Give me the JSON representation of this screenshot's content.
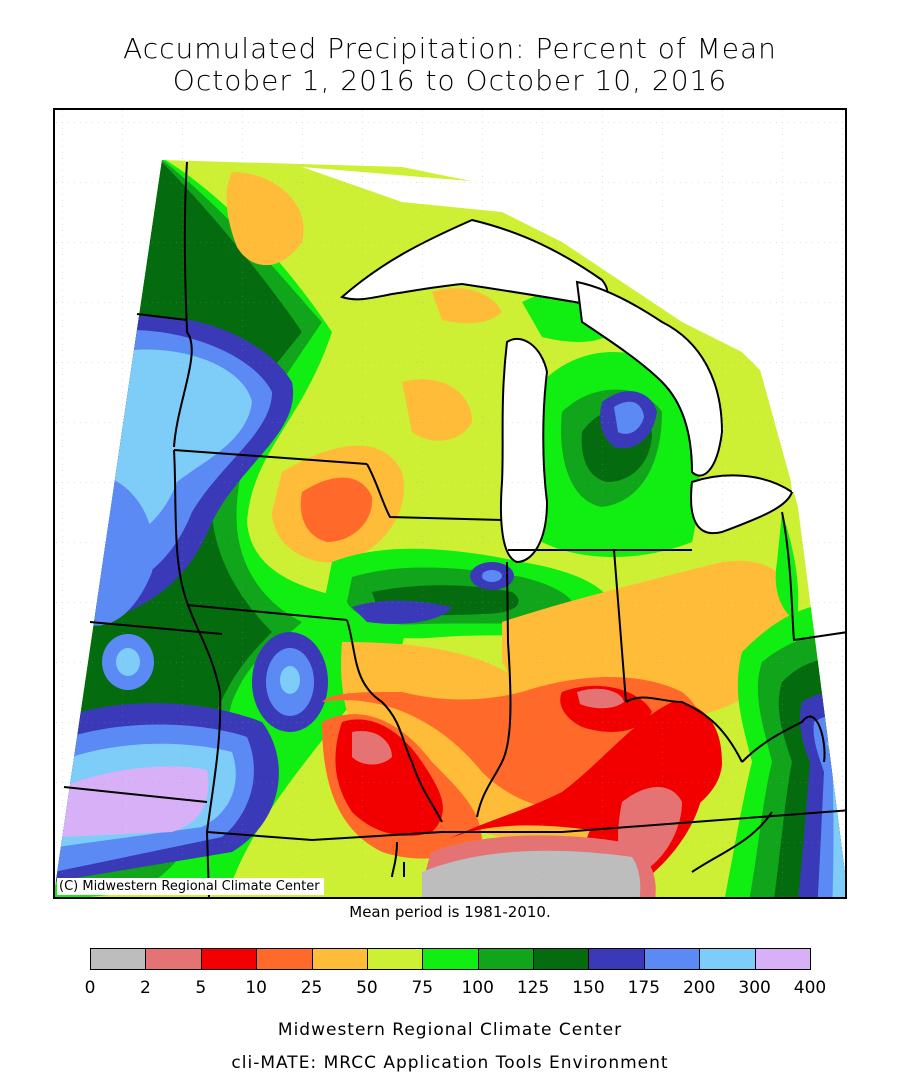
{
  "title": {
    "line1": "Accumulated Precipitation: Percent of Mean",
    "line2": "October 1, 2016 to October 10, 2016"
  },
  "map": {
    "region": "Midwest United States",
    "copyright": "(C) Midwestern Regional Climate Center",
    "mean_period": "Mean period is 1981-2010."
  },
  "legend": {
    "ticks": [
      "0",
      "2",
      "5",
      "10",
      "25",
      "50",
      "75",
      "100",
      "125",
      "150",
      "175",
      "200",
      "300",
      "400"
    ],
    "bins": [
      {
        "range": "0-2",
        "color": "#bdbdbd"
      },
      {
        "range": "2-5",
        "color": "#e57373"
      },
      {
        "range": "5-10",
        "color": "#f20000"
      },
      {
        "range": "10-25",
        "color": "#ff6a2b"
      },
      {
        "range": "25-50",
        "color": "#ffbc38"
      },
      {
        "range": "50-75",
        "color": "#cdf035"
      },
      {
        "range": "75-100",
        "color": "#11ee11"
      },
      {
        "range": "100-125",
        "color": "#10a51a"
      },
      {
        "range": "125-150",
        "color": "#056b0f"
      },
      {
        "range": "150-175",
        "color": "#3a3ab8"
      },
      {
        "range": "175-200",
        "color": "#5c8af5"
      },
      {
        "range": "200-300",
        "color": "#7dcdf8"
      },
      {
        "range": "300-400",
        "color": "#d8b0f7"
      }
    ]
  },
  "footer": {
    "line1": "Midwestern Regional Climate Center",
    "line2": "cli-MATE: MRCC Application Tools Environment"
  }
}
